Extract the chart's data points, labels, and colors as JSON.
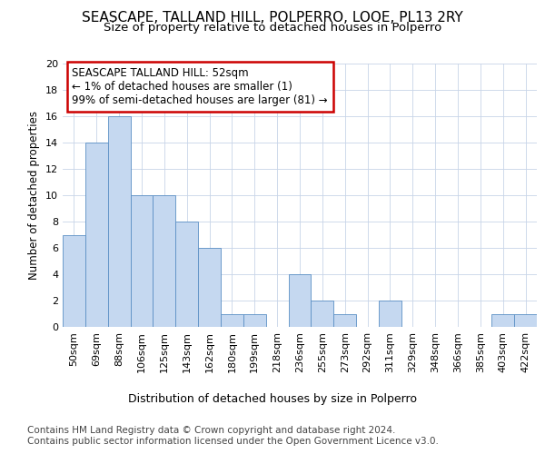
{
  "title1": "SEASCAPE, TALLAND HILL, POLPERRO, LOOE, PL13 2RY",
  "title2": "Size of property relative to detached houses in Polperro",
  "xlabel": "Distribution of detached houses by size in Polperro",
  "ylabel": "Number of detached properties",
  "categories": [
    "50sqm",
    "69sqm",
    "88sqm",
    "106sqm",
    "125sqm",
    "143sqm",
    "162sqm",
    "180sqm",
    "199sqm",
    "218sqm",
    "236sqm",
    "255sqm",
    "273sqm",
    "292sqm",
    "311sqm",
    "329sqm",
    "348sqm",
    "366sqm",
    "385sqm",
    "403sqm",
    "422sqm"
  ],
  "values": [
    7,
    14,
    16,
    10,
    10,
    8,
    6,
    1,
    1,
    0,
    4,
    2,
    1,
    0,
    2,
    0,
    0,
    0,
    0,
    1,
    1
  ],
  "bar_color": "#c5d8f0",
  "bar_edge_color": "#5b8fc4",
  "annotation_title": "SEASCAPE TALLAND HILL: 52sqm",
  "annotation_line1": "← 1% of detached houses are smaller (1)",
  "annotation_line2": "99% of semi-detached houses are larger (81) →",
  "annotation_box_color": "#ffffff",
  "annotation_box_edge_color": "#cc0000",
  "ylim": [
    0,
    20
  ],
  "yticks": [
    0,
    2,
    4,
    6,
    8,
    10,
    12,
    14,
    16,
    18,
    20
  ],
  "footer1": "Contains HM Land Registry data © Crown copyright and database right 2024.",
  "footer2": "Contains public sector information licensed under the Open Government Licence v3.0.",
  "bg_color": "#ffffff",
  "plot_bg_color": "#ffffff",
  "grid_color": "#c8d4e8",
  "title1_fontsize": 11,
  "title2_fontsize": 9.5,
  "xlabel_fontsize": 9,
  "ylabel_fontsize": 8.5,
  "tick_fontsize": 8,
  "annotation_fontsize": 8.5,
  "footer_fontsize": 7.5
}
